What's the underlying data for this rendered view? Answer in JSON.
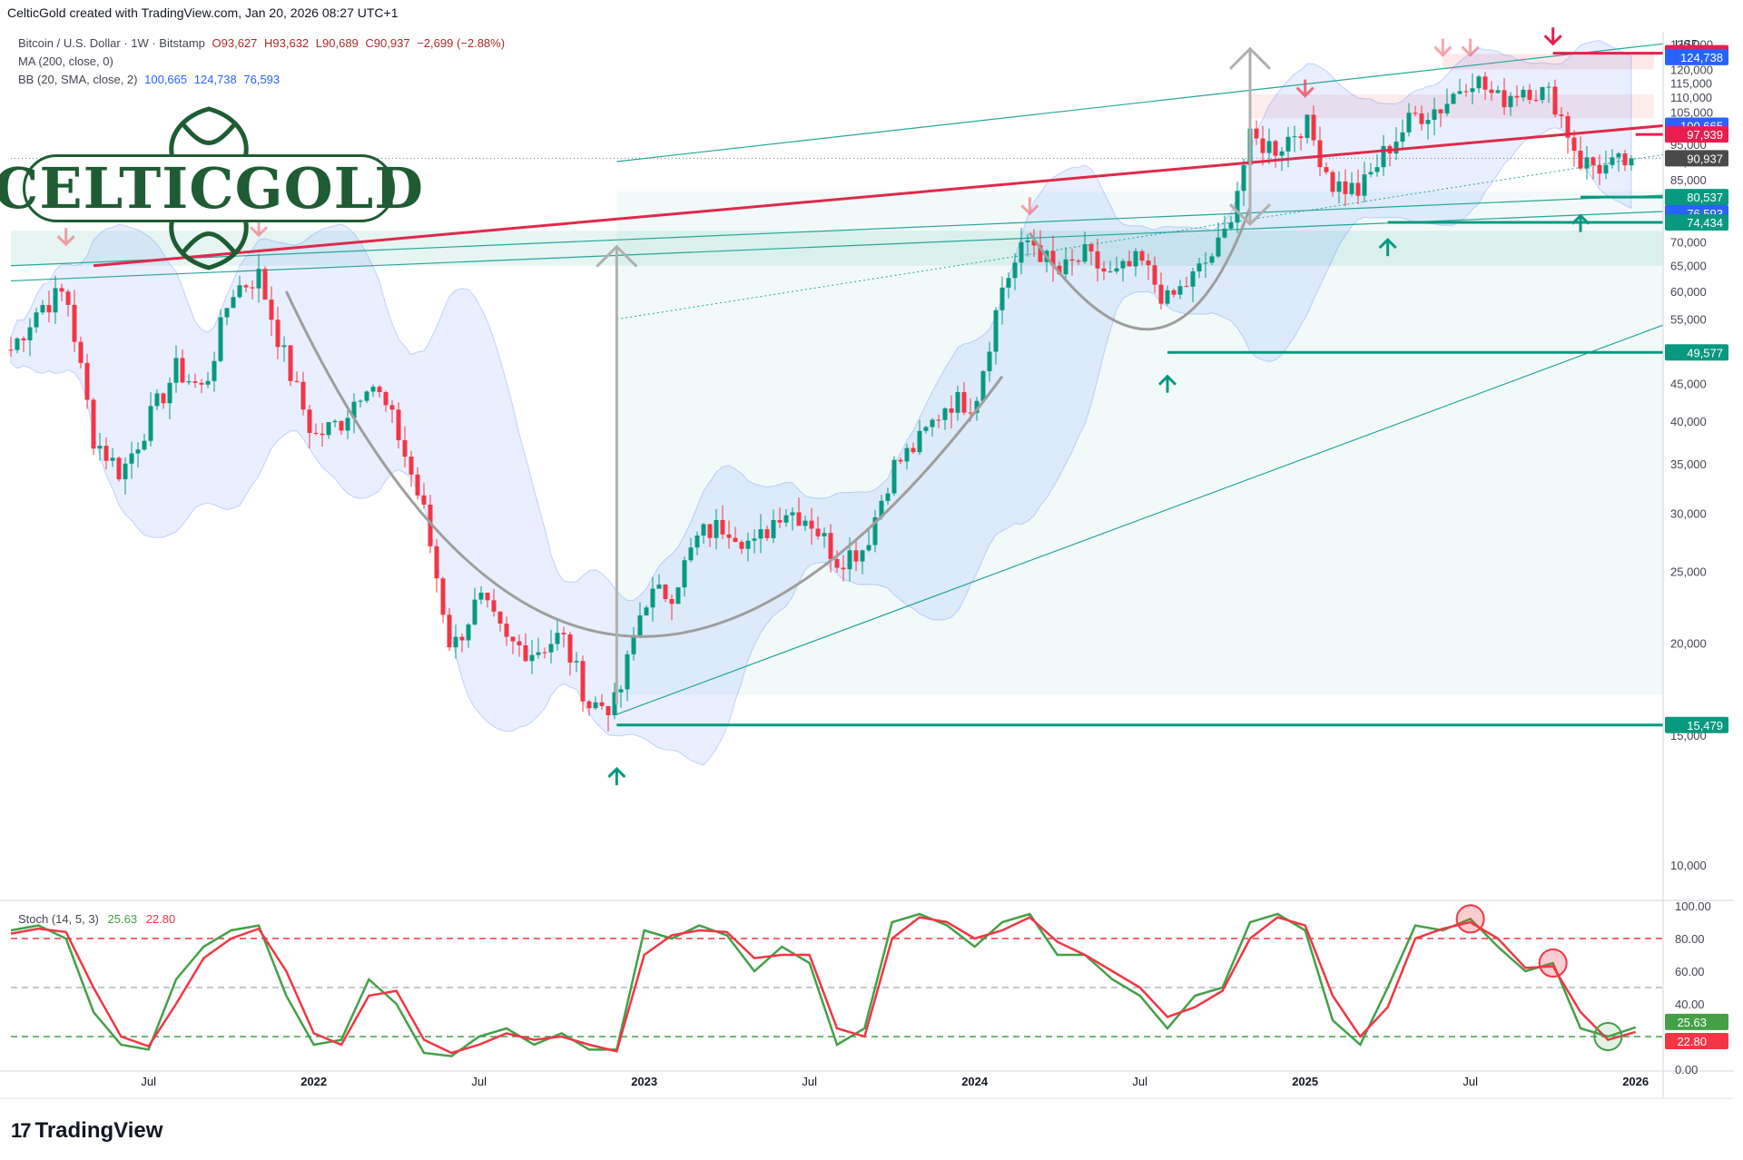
{
  "header": {
    "attribution": "CelticGold created with TradingView.com, Jan 20, 2026 08:27 UTC+1"
  },
  "legend": {
    "symbol": "Bitcoin / U.S. Dollar · 1W · Bitstamp",
    "open": "O93,627",
    "high": "H93,632",
    "low": "L90,689",
    "close": "C90,937",
    "change": "−2,699 (−2.88%)",
    "ma_label": "MA (200, close, 0)",
    "bb_label": "BB (20, SMA, close, 2)",
    "bb_basis": "100,665",
    "bb_upper": "124,738",
    "bb_lower": "76,593",
    "stoch_label": "Stoch (14, 5, 3)",
    "stoch_k": "25.63",
    "stoch_d": "22.80"
  },
  "logo": {
    "text": "CELTICGOLD"
  },
  "footer": {
    "brand": "TradingView"
  },
  "colors": {
    "up": "#089981",
    "down": "#f23645",
    "ma": "#e0294a",
    "bb": "#2962ff",
    "stoch_k": "#43a047",
    "stoch_d": "#f23645",
    "support": "#089981",
    "resist": "#e91e4f"
  },
  "chart_data": {
    "type": "candlestick",
    "currency": "USD",
    "y_scale": "log",
    "ylim": [
      9000,
      135000
    ],
    "y_ticks": [
      10000,
      15000,
      20000,
      25000,
      30000,
      35000,
      40000,
      45000,
      50000,
      55000,
      60000,
      65000,
      70000,
      75000,
      80000,
      85000,
      90000,
      95000,
      100000,
      105000,
      110000,
      115000,
      120000,
      125000,
      130000
    ],
    "y_tick_labels": [
      "10,000",
      "15,000",
      "20,000",
      "25,000",
      "30,000",
      "35,000",
      "40,000",
      "45,000",
      "50,000",
      "55,000",
      "60,000",
      "65,000",
      "70,000",
      "75,000",
      "80,000",
      "85,000",
      "90,000",
      "95,000",
      "100,000",
      "105,000",
      "110,000",
      "115,000",
      "120,000",
      "125,000",
      "130,000"
    ],
    "x_range": [
      "2021-02",
      "2026-02"
    ],
    "x_ticks": [
      {
        "date": "2021-07",
        "label": "Jul"
      },
      {
        "date": "2022-01",
        "label": "2022"
      },
      {
        "date": "2022-07",
        "label": "Jul"
      },
      {
        "date": "2023-01",
        "label": "2023"
      },
      {
        "date": "2023-07",
        "label": "Jul"
      },
      {
        "date": "2024-01",
        "label": "2024"
      },
      {
        "date": "2024-07",
        "label": "Jul"
      },
      {
        "date": "2025-01",
        "label": "2025"
      },
      {
        "date": "2025-07",
        "label": "Jul"
      },
      {
        "date": "2026-01",
        "label": "2026"
      }
    ],
    "price_path": [
      [
        "2021-02",
        50000
      ],
      [
        "2021-03",
        57000
      ],
      [
        "2021-04",
        60000
      ],
      [
        "2021-05",
        38000
      ],
      [
        "2021-06",
        34000
      ],
      [
        "2021-07",
        40000
      ],
      [
        "2021-08",
        47000
      ],
      [
        "2021-09",
        44000
      ],
      [
        "2021-10",
        60000
      ],
      [
        "2021-11",
        63000
      ],
      [
        "2021-12",
        48000
      ],
      [
        "2022-01",
        38000
      ],
      [
        "2022-02",
        40000
      ],
      [
        "2022-03",
        46000
      ],
      [
        "2022-04",
        39000
      ],
      [
        "2022-05",
        30000
      ],
      [
        "2022-06",
        19500
      ],
      [
        "2022-07",
        23000
      ],
      [
        "2022-08",
        20000
      ],
      [
        "2022-09",
        19500
      ],
      [
        "2022-10",
        20500
      ],
      [
        "2022-11",
        16500
      ],
      [
        "2022-12",
        16500
      ],
      [
        "2023-01",
        23000
      ],
      [
        "2023-02",
        23500
      ],
      [
        "2023-03",
        28000
      ],
      [
        "2023-04",
        29000
      ],
      [
        "2023-05",
        27000
      ],
      [
        "2023-06",
        30500
      ],
      [
        "2023-07",
        29500
      ],
      [
        "2023-08",
        26000
      ],
      [
        "2023-09",
        27000
      ],
      [
        "2023-10",
        34500
      ],
      [
        "2023-11",
        37500
      ],
      [
        "2023-12",
        42500
      ],
      [
        "2024-01",
        42500
      ],
      [
        "2024-02",
        61000
      ],
      [
        "2024-03",
        71000
      ],
      [
        "2024-04",
        63000
      ],
      [
        "2024-05",
        67000
      ],
      [
        "2024-06",
        62500
      ],
      [
        "2024-07",
        66000
      ],
      [
        "2024-08",
        58000
      ],
      [
        "2024-09",
        63000
      ],
      [
        "2024-10",
        70000
      ],
      [
        "2024-11",
        96000
      ],
      [
        "2024-12",
        94000
      ],
      [
        "2025-01",
        102000
      ],
      [
        "2025-02",
        84000
      ],
      [
        "2025-03",
        82000
      ],
      [
        "2025-04",
        94000
      ],
      [
        "2025-05",
        104000
      ],
      [
        "2025-06",
        107000
      ],
      [
        "2025-07",
        118000
      ],
      [
        "2025-08",
        109000
      ],
      [
        "2025-09",
        114000
      ],
      [
        "2025-10",
        110000
      ],
      [
        "2025-11",
        90000
      ],
      [
        "2025-12",
        88000
      ],
      [
        "2026-01",
        90937
      ]
    ],
    "series": [
      {
        "name": "MA (200, close, 0)",
        "values": [
          [
            "2021-05",
            65000
          ],
          [
            "2026-02",
            100665
          ]
        ]
      }
    ],
    "price_labels": [
      {
        "value": 126272,
        "text": "126,272",
        "color": "#e91e4f"
      },
      {
        "value": 124738,
        "text": "124,738",
        "color": "#2962ff"
      },
      {
        "value": 100665,
        "text": "100,665",
        "color": "#2962ff"
      },
      {
        "value": 97939,
        "text": "97,939",
        "color": "#e91e4f"
      },
      {
        "value": 90937,
        "text": "90,937",
        "color": "#4a4a4a"
      },
      {
        "value": 80537,
        "text": "80,537",
        "color": "#089981"
      },
      {
        "value": 76593,
        "text": "76,593",
        "color": "#2962ff"
      },
      {
        "value": 74434,
        "text": "74,434",
        "color": "#089981"
      },
      {
        "value": 49577,
        "text": "49,577",
        "color": "#089981"
      },
      {
        "value": 15479,
        "text": "15,479",
        "color": "#089981"
      }
    ],
    "support_lines": [
      {
        "from": "2022-12",
        "to": "2026-02",
        "value": 15479
      },
      {
        "from": "2024-08",
        "to": "2026-02",
        "value": 49577
      },
      {
        "from": "2025-04",
        "to": "2026-02",
        "value": 74434
      },
      {
        "from": "2025-11",
        "to": "2026-02",
        "value": 80537
      }
    ],
    "resistance_lines": [
      {
        "from": "2025-10",
        "to": "2026-02",
        "value": 126272
      },
      {
        "from": "2026-01",
        "to": "2026-02",
        "value": 97939
      }
    ],
    "stochastic": {
      "ylim": [
        0,
        100
      ],
      "y_ticks": [
        0,
        20,
        40,
        60,
        80,
        100
      ],
      "y_tick_labels": [
        "0.00",
        "20.00",
        "40.00",
        "60.00",
        "80.00",
        "100.00"
      ],
      "levels": [
        20,
        50,
        80
      ],
      "k_label": "25.63",
      "d_label": "22.80",
      "k": [
        [
          "2021-02",
          85
        ],
        [
          "2021-03",
          88
        ],
        [
          "2021-04",
          80
        ],
        [
          "2021-05",
          35
        ],
        [
          "2021-06",
          15
        ],
        [
          "2021-07",
          12
        ],
        [
          "2021-08",
          55
        ],
        [
          "2021-09",
          75
        ],
        [
          "2021-10",
          85
        ],
        [
          "2021-11",
          88
        ],
        [
          "2021-12",
          45
        ],
        [
          "2022-01",
          15
        ],
        [
          "2022-02",
          18
        ],
        [
          "2022-03",
          55
        ],
        [
          "2022-04",
          40
        ],
        [
          "2022-05",
          10
        ],
        [
          "2022-06",
          8
        ],
        [
          "2022-07",
          20
        ],
        [
          "2022-08",
          25
        ],
        [
          "2022-09",
          15
        ],
        [
          "2022-10",
          22
        ],
        [
          "2022-11",
          12
        ],
        [
          "2022-12",
          12
        ],
        [
          "2023-01",
          85
        ],
        [
          "2023-02",
          80
        ],
        [
          "2023-03",
          88
        ],
        [
          "2023-04",
          82
        ],
        [
          "2023-05",
          60
        ],
        [
          "2023-06",
          75
        ],
        [
          "2023-07",
          65
        ],
        [
          "2023-08",
          15
        ],
        [
          "2023-09",
          25
        ],
        [
          "2023-10",
          90
        ],
        [
          "2023-11",
          95
        ],
        [
          "2023-12",
          88
        ],
        [
          "2024-01",
          75
        ],
        [
          "2024-02",
          90
        ],
        [
          "2024-03",
          95
        ],
        [
          "2024-04",
          70
        ],
        [
          "2024-05",
          70
        ],
        [
          "2024-06",
          55
        ],
        [
          "2024-07",
          45
        ],
        [
          "2024-08",
          25
        ],
        [
          "2024-09",
          45
        ],
        [
          "2024-10",
          50
        ],
        [
          "2024-11",
          90
        ],
        [
          "2024-12",
          95
        ],
        [
          "2025-01",
          85
        ],
        [
          "2025-02",
          30
        ],
        [
          "2025-03",
          15
        ],
        [
          "2025-04",
          50
        ],
        [
          "2025-05",
          88
        ],
        [
          "2025-06",
          85
        ],
        [
          "2025-07",
          92
        ],
        [
          "2025-08",
          75
        ],
        [
          "2025-09",
          60
        ],
        [
          "2025-10",
          65
        ],
        [
          "2025-11",
          25
        ],
        [
          "2025-12",
          20
        ],
        [
          "2026-01",
          25.63
        ]
      ],
      "d": [
        [
          "2021-02",
          83
        ],
        [
          "2021-03",
          86
        ],
        [
          "2021-04",
          84
        ],
        [
          "2021-05",
          50
        ],
        [
          "2021-06",
          20
        ],
        [
          "2021-07",
          14
        ],
        [
          "2021-08",
          40
        ],
        [
          "2021-09",
          68
        ],
        [
          "2021-10",
          80
        ],
        [
          "2021-11",
          86
        ],
        [
          "2021-12",
          60
        ],
        [
          "2022-01",
          22
        ],
        [
          "2022-02",
          15
        ],
        [
          "2022-03",
          45
        ],
        [
          "2022-04",
          48
        ],
        [
          "2022-05",
          18
        ],
        [
          "2022-06",
          10
        ],
        [
          "2022-07",
          15
        ],
        [
          "2022-08",
          22
        ],
        [
          "2022-09",
          18
        ],
        [
          "2022-10",
          20
        ],
        [
          "2022-11",
          15
        ],
        [
          "2022-12",
          11
        ],
        [
          "2023-01",
          70
        ],
        [
          "2023-02",
          82
        ],
        [
          "2023-03",
          85
        ],
        [
          "2023-04",
          84
        ],
        [
          "2023-05",
          68
        ],
        [
          "2023-06",
          70
        ],
        [
          "2023-07",
          70
        ],
        [
          "2023-08",
          25
        ],
        [
          "2023-09",
          20
        ],
        [
          "2023-10",
          80
        ],
        [
          "2023-11",
          93
        ],
        [
          "2023-12",
          90
        ],
        [
          "2024-01",
          80
        ],
        [
          "2024-02",
          85
        ],
        [
          "2024-03",
          93
        ],
        [
          "2024-04",
          78
        ],
        [
          "2024-05",
          70
        ],
        [
          "2024-06",
          60
        ],
        [
          "2024-07",
          50
        ],
        [
          "2024-08",
          32
        ],
        [
          "2024-09",
          38
        ],
        [
          "2024-10",
          48
        ],
        [
          "2024-11",
          80
        ],
        [
          "2024-12",
          93
        ],
        [
          "2025-01",
          88
        ],
        [
          "2025-02",
          45
        ],
        [
          "2025-03",
          20
        ],
        [
          "2025-04",
          38
        ],
        [
          "2025-05",
          80
        ],
        [
          "2025-06",
          86
        ],
        [
          "2025-07",
          90
        ],
        [
          "2025-08",
          80
        ],
        [
          "2025-09",
          62
        ],
        [
          "2025-10",
          63
        ],
        [
          "2025-11",
          35
        ],
        [
          "2025-12",
          18
        ],
        [
          "2026-01",
          22.8
        ]
      ]
    }
  }
}
